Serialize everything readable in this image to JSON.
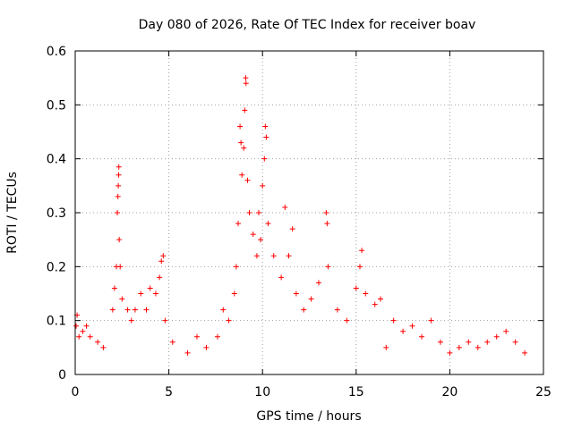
{
  "chart_data": {
    "type": "scatter",
    "title": "Day 080 of 2026, Rate Of TEC Index for receiver boav",
    "xlabel": "GPS time / hours",
    "ylabel": "ROTI / TECUs",
    "xlim": [
      0,
      25
    ],
    "ylim": [
      0,
      0.6
    ],
    "xticks": [
      "0",
      "5",
      "10",
      "15",
      "20",
      "25"
    ],
    "yticks": [
      "0",
      "0.1",
      "0.2",
      "0.3",
      "0.4",
      "0.5",
      "0.6"
    ],
    "grid": true,
    "marker": "+",
    "color": "#ff0000",
    "series": [
      {
        "values": [
          [
            0.05,
            0.09
          ],
          [
            0.1,
            0.11
          ],
          [
            0.2,
            0.07
          ],
          [
            0.4,
            0.08
          ],
          [
            0.6,
            0.09
          ],
          [
            0.8,
            0.07
          ],
          [
            1.2,
            0.06
          ],
          [
            1.5,
            0.05
          ],
          [
            2.0,
            0.12
          ],
          [
            2.1,
            0.16
          ],
          [
            2.2,
            0.2
          ],
          [
            2.25,
            0.3
          ],
          [
            2.28,
            0.33
          ],
          [
            2.3,
            0.35
          ],
          [
            2.32,
            0.37
          ],
          [
            2.33,
            0.385
          ],
          [
            2.35,
            0.25
          ],
          [
            2.4,
            0.2
          ],
          [
            2.5,
            0.14
          ],
          [
            2.8,
            0.12
          ],
          [
            3.0,
            0.1
          ],
          [
            3.2,
            0.12
          ],
          [
            3.5,
            0.15
          ],
          [
            3.8,
            0.12
          ],
          [
            4.0,
            0.16
          ],
          [
            4.3,
            0.15
          ],
          [
            4.5,
            0.18
          ],
          [
            4.6,
            0.21
          ],
          [
            4.7,
            0.22
          ],
          [
            4.8,
            0.1
          ],
          [
            5.2,
            0.06
          ],
          [
            6.0,
            0.04
          ],
          [
            6.5,
            0.07
          ],
          [
            7.0,
            0.05
          ],
          [
            7.6,
            0.07
          ],
          [
            7.9,
            0.12
          ],
          [
            8.2,
            0.1
          ],
          [
            8.5,
            0.15
          ],
          [
            8.6,
            0.2
          ],
          [
            8.7,
            0.28
          ],
          [
            8.8,
            0.46
          ],
          [
            8.85,
            0.43
          ],
          [
            8.9,
            0.37
          ],
          [
            9.0,
            0.42
          ],
          [
            9.05,
            0.49
          ],
          [
            9.1,
            0.55
          ],
          [
            9.12,
            0.54
          ],
          [
            9.2,
            0.36
          ],
          [
            9.3,
            0.3
          ],
          [
            9.5,
            0.26
          ],
          [
            9.7,
            0.22
          ],
          [
            9.8,
            0.3
          ],
          [
            9.9,
            0.25
          ],
          [
            10.0,
            0.35
          ],
          [
            10.1,
            0.4
          ],
          [
            10.15,
            0.46
          ],
          [
            10.2,
            0.44
          ],
          [
            10.3,
            0.28
          ],
          [
            10.6,
            0.22
          ],
          [
            11.0,
            0.18
          ],
          [
            11.2,
            0.31
          ],
          [
            11.4,
            0.22
          ],
          [
            11.6,
            0.27
          ],
          [
            11.8,
            0.15
          ],
          [
            12.2,
            0.12
          ],
          [
            12.6,
            0.14
          ],
          [
            13.0,
            0.17
          ],
          [
            13.4,
            0.3
          ],
          [
            13.45,
            0.28
          ],
          [
            13.5,
            0.2
          ],
          [
            14.0,
            0.12
          ],
          [
            14.5,
            0.1
          ],
          [
            15.0,
            0.16
          ],
          [
            15.2,
            0.2
          ],
          [
            15.3,
            0.23
          ],
          [
            15.5,
            0.15
          ],
          [
            16.0,
            0.13
          ],
          [
            16.3,
            0.14
          ],
          [
            16.6,
            0.05
          ],
          [
            17.0,
            0.1
          ],
          [
            17.5,
            0.08
          ],
          [
            18.0,
            0.09
          ],
          [
            18.5,
            0.07
          ],
          [
            19.0,
            0.1
          ],
          [
            19.5,
            0.06
          ],
          [
            20.0,
            0.04
          ],
          [
            20.5,
            0.05
          ],
          [
            21.0,
            0.06
          ],
          [
            21.5,
            0.05
          ],
          [
            22.0,
            0.06
          ],
          [
            22.5,
            0.07
          ],
          [
            23.0,
            0.08
          ],
          [
            23.5,
            0.06
          ],
          [
            24.0,
            0.04
          ]
        ]
      }
    ]
  }
}
